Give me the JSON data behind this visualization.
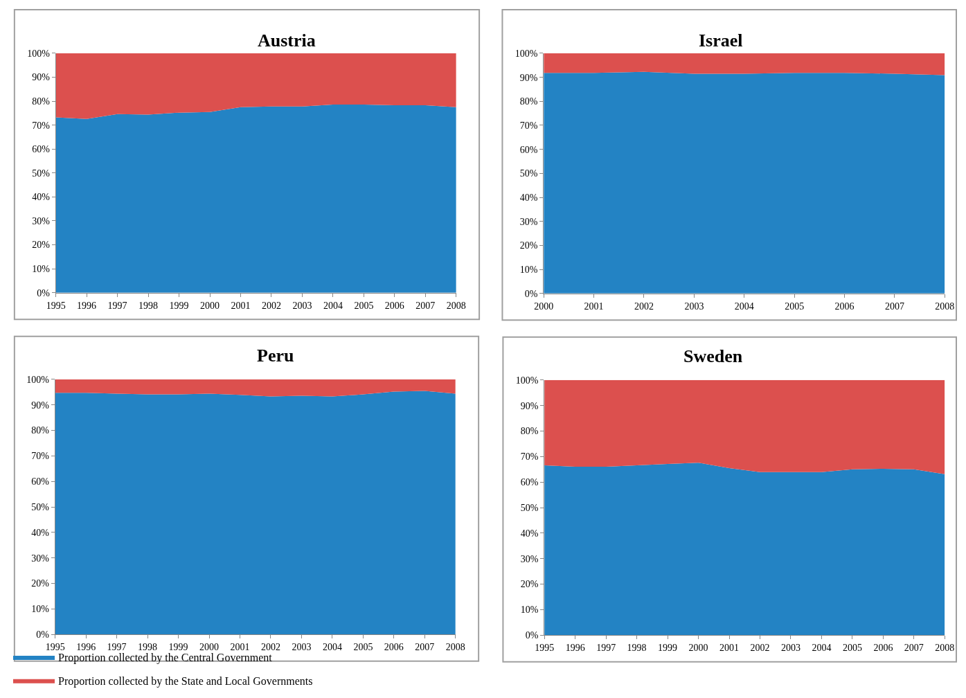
{
  "chart_data": [
    {
      "type": "area",
      "stacked": true,
      "title": "Austria",
      "x": [
        1995,
        1996,
        1997,
        1998,
        1999,
        2000,
        2001,
        2002,
        2003,
        2004,
        2005,
        2006,
        2007,
        2008
      ],
      "xlim": [
        1995,
        2008
      ],
      "xticks": [
        1995,
        1996,
        1997,
        1998,
        1999,
        2000,
        2001,
        2002,
        2003,
        2004,
        2005,
        2006,
        2007,
        2008
      ],
      "ylim": [
        0,
        100
      ],
      "yticks": [
        {
          "value": 0,
          "label": "0%"
        },
        {
          "value": 10,
          "label": "10%"
        },
        {
          "value": 20,
          "label": "20%"
        },
        {
          "value": 30,
          "label": "30%"
        },
        {
          "value": 40,
          "label": "40%"
        },
        {
          "value": 50,
          "label": "50%"
        },
        {
          "value": 60,
          "label": "60%"
        },
        {
          "value": 70,
          "label": "70%"
        },
        {
          "value": 80,
          "label": "80%"
        },
        {
          "value": 90,
          "label": "90%"
        },
        {
          "value": 100,
          "label": "100%"
        }
      ],
      "grid": false,
      "legend": "bottom",
      "series": [
        {
          "name": "Proportion collected by the Central Government",
          "color": "#2383c4",
          "values": [
            73.2,
            72.6,
            74.6,
            74.4,
            75.2,
            75.5,
            77.5,
            77.8,
            77.8,
            78.6,
            78.6,
            78.3,
            78.3,
            77.5
          ]
        },
        {
          "name": "Proportion collected by the State and Local Governments",
          "color": "#dc504e",
          "values": [
            26.8,
            27.4,
            25.4,
            25.6,
            24.8,
            24.5,
            22.5,
            22.2,
            22.2,
            21.4,
            21.4,
            21.7,
            21.7,
            22.5
          ]
        }
      ]
    },
    {
      "type": "area",
      "stacked": true,
      "title": "Israel",
      "x": [
        2000,
        2001,
        2002,
        2003,
        2004,
        2005,
        2006,
        2007,
        2008
      ],
      "xlim": [
        2000,
        2008
      ],
      "xticks": [
        2000,
        2001,
        2002,
        2003,
        2004,
        2005,
        2006,
        2007,
        2008
      ],
      "ylim": [
        0,
        100
      ],
      "yticks": [
        {
          "value": 0,
          "label": "0%"
        },
        {
          "value": 10,
          "label": "10%"
        },
        {
          "value": 20,
          "label": "20%"
        },
        {
          "value": 30,
          "label": "30%"
        },
        {
          "value": 40,
          "label": "40%"
        },
        {
          "value": 50,
          "label": "50%"
        },
        {
          "value": 60,
          "label": "60%"
        },
        {
          "value": 70,
          "label": "70%"
        },
        {
          "value": 80,
          "label": "80%"
        },
        {
          "value": 90,
          "label": "90%"
        },
        {
          "value": 100,
          "label": "100%"
        }
      ],
      "grid": false,
      "series": [
        {
          "color": "#2383c4",
          "values": [
            91.8,
            91.8,
            92.3,
            91.5,
            91.5,
            91.8,
            91.8,
            91.5,
            90.9
          ]
        },
        {
          "color": "#dc504e",
          "values": [
            8.2,
            8.2,
            7.7,
            8.5,
            8.5,
            8.2,
            8.2,
            8.5,
            9.1
          ]
        }
      ]
    },
    {
      "type": "area",
      "stacked": true,
      "title": "Peru",
      "x": [
        1995,
        1996,
        1997,
        1998,
        1999,
        2000,
        2001,
        2002,
        2003,
        2004,
        2005,
        2006,
        2007,
        2008
      ],
      "xlim": [
        1995,
        2008
      ],
      "xticks": [
        1995,
        1996,
        1997,
        1998,
        1999,
        2000,
        2001,
        2002,
        2003,
        2004,
        2005,
        2006,
        2007,
        2008
      ],
      "ylim": [
        0,
        100
      ],
      "yticks": [
        {
          "value": 0,
          "label": "0%"
        },
        {
          "value": 10,
          "label": "10%"
        },
        {
          "value": 20,
          "label": "20%"
        },
        {
          "value": 30,
          "label": "30%"
        },
        {
          "value": 40,
          "label": "40%"
        },
        {
          "value": 50,
          "label": "50%"
        },
        {
          "value": 60,
          "label": "60%"
        },
        {
          "value": 70,
          "label": "70%"
        },
        {
          "value": 80,
          "label": "80%"
        },
        {
          "value": 90,
          "label": "90%"
        },
        {
          "value": 100,
          "label": "100%"
        }
      ],
      "grid": false,
      "series": [
        {
          "color": "#2383c4",
          "values": [
            94.7,
            94.7,
            94.4,
            94.1,
            94.1,
            94.4,
            93.9,
            93.3,
            93.6,
            93.3,
            94.1,
            95.2,
            95.5,
            94.4
          ]
        },
        {
          "color": "#dc504e",
          "values": [
            5.3,
            5.3,
            5.6,
            5.9,
            5.9,
            5.6,
            6.1,
            6.7,
            6.4,
            6.7,
            5.9,
            4.8,
            4.5,
            5.6
          ]
        }
      ]
    },
    {
      "type": "area",
      "stacked": true,
      "title": "Sweden",
      "x": [
        1995,
        1996,
        1997,
        1998,
        1999,
        2000,
        2001,
        2002,
        2003,
        2004,
        2005,
        2006,
        2007,
        2008
      ],
      "xlim": [
        1995,
        2008
      ],
      "xticks": [
        1995,
        1996,
        1997,
        1998,
        1999,
        2000,
        2001,
        2002,
        2003,
        2004,
        2005,
        2006,
        2007,
        2008
      ],
      "ylim": [
        0,
        100
      ],
      "yticks": [
        {
          "value": 0,
          "label": "0%"
        },
        {
          "value": 10,
          "label": "10%"
        },
        {
          "value": 20,
          "label": "20%"
        },
        {
          "value": 30,
          "label": "30%"
        },
        {
          "value": 40,
          "label": "40%"
        },
        {
          "value": 50,
          "label": "50%"
        },
        {
          "value": 60,
          "label": "60%"
        },
        {
          "value": 70,
          "label": "70%"
        },
        {
          "value": 80,
          "label": "80%"
        },
        {
          "value": 90,
          "label": "90%"
        },
        {
          "value": 100,
          "label": "100%"
        }
      ],
      "grid": false,
      "series": [
        {
          "color": "#2383c4",
          "values": [
            66.6,
            66.0,
            66.0,
            66.6,
            67.1,
            67.6,
            65.5,
            63.9,
            63.9,
            63.9,
            65.0,
            65.2,
            65.0,
            63.1
          ]
        },
        {
          "color": "#dc504e",
          "values": [
            33.4,
            34.0,
            34.0,
            33.4,
            32.9,
            32.4,
            34.5,
            36.1,
            36.1,
            36.1,
            35.0,
            34.8,
            35.0,
            36.9
          ]
        }
      ]
    }
  ]
}
